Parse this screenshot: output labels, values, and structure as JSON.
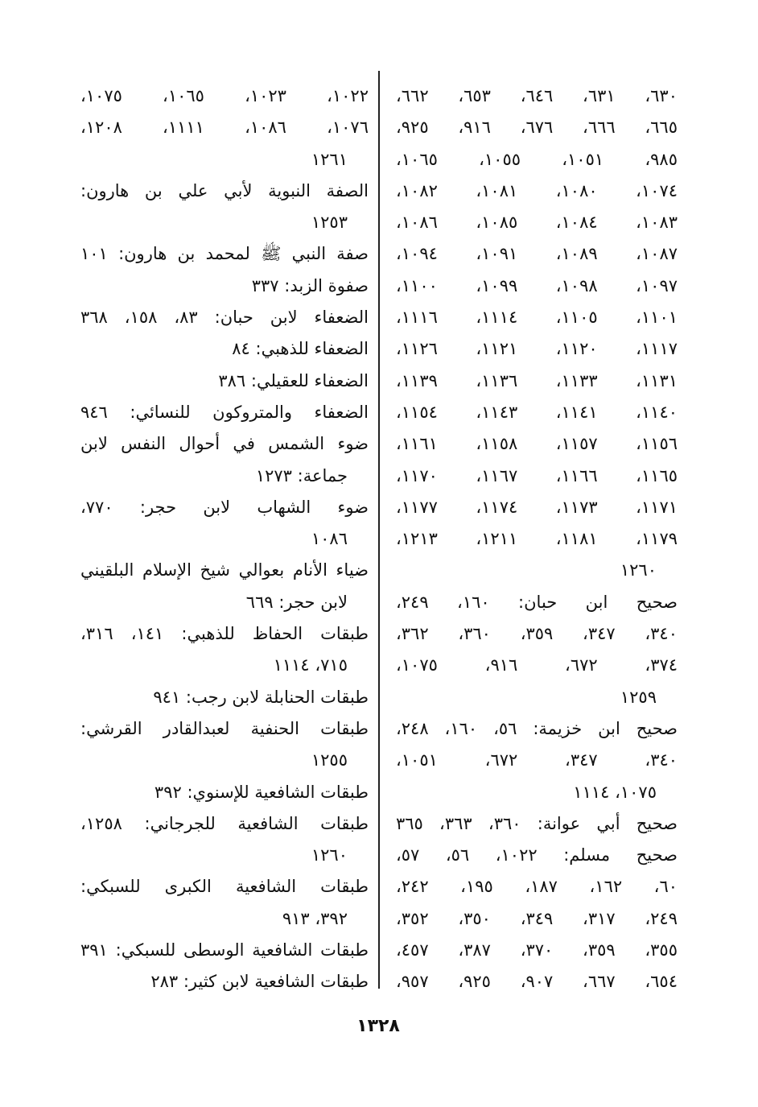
{
  "columns": [
    {
      "lines": [
        "٦٣٠، ٦٣١، ٦٤٦، ٦٥٣، ٦٦٢،",
        "٦٦٥، ٦٦٦، ٦٧٦، ٩١٦، ٩٢٥،",
        "٩٨٥، ١٠٥١، ١٠٥٥، ١٠٦٥،",
        "١٠٧٤، ١٠٨٠، ١٠٨١، ١٠٨٢،",
        "١٠٨٣، ١٠٨٤، ١٠٨٥، ١٠٨٦،",
        "١٠٨٧، ١٠٨٩، ١٠٩١، ١٠٩٤،",
        "١٠٩٧، ١٠٩٨، ١٠٩٩، ١١٠٠،",
        "١١٠١، ١١٠٥، ١١١٤، ١١١٦،",
        "١١١٧، ١١٢٠، ١١٢١، ١١٢٦،",
        "١١٣١، ١١٣٣، ١١٣٦، ١١٣٩،",
        "١١٤٠، ١١٤١، ١١٤٣، ١١٥٤،",
        "١١٥٦، ١١٥٧، ١١٥٨، ١١٦١،",
        "١١٦٥، ١١٦٦، ١١٦٧، ١١٧٠،",
        "١١٧١، ١١٧٣، ١١٧٤، ١١٧٧،",
        "١١٧٩، ١١٨١، ١٢١١، ١٢١٣،",
        "١٢٦٠",
        "صحيح ابن حبان: ١٦٠، ٢٤٩،",
        "٣٤٠، ٣٤٧، ٣٥٩، ٣٦٠، ٣٦٢،",
        "٣٧٤، ٦٧٢، ٩١٦، ١٠٧٥،",
        "١٢٥٩",
        "صحيح ابن خزيمة: ٥٦، ١٦٠، ٢٤٨،",
        "٣٤٠، ٣٤٧، ٦٧٢، ١٠٥١،",
        "١٠٧٥، ١١١٤",
        "صحيح أبي عوانة: ٣٦٠، ٣٦٣، ٣٦٥",
        "صحيح مسلم: ١٠٢٢، ٥٦، ٥٧،",
        "٦٠، ١٦٢، ١٨٧، ١٩٥، ٢٤٢،",
        "٢٤٩، ٣١٧، ٣٤٩، ٣٥٠، ٣٥٢،",
        "٣٥٥، ٣٥٩، ٣٧٠، ٣٨٧، ٤٥٧،",
        "٦٥٤، ٦٦٧، ٩٠٧، ٩٢٥، ٩٥٧،"
      ]
    },
    {
      "lines": [
        "١٠٢٢، ١٠٢٣، ١٠٦٥، ١٠٧٥،",
        "١٠٧٦، ١٠٨٦، ١١١١، ١٢٠٨،",
        "١٢٦١",
        "الصفة النبوية لأبي علي بن هارون:",
        "١٢٥٣",
        "صفة النبي ﷺ لمحمد بن هارون: ١٠١",
        "صفوة الزبد: ٣٣٧",
        "الضعفاء لابن حبان: ٨٣، ١٥٨، ٣٦٨",
        "الضعفاء للذهبي: ٨٤",
        "الضعفاء للعقيلي: ٣٨٦",
        "الضعفاء والمتروكون للنسائي: ٩٤٦",
        "ضوء الشمس في أحوال النفس لابن",
        "جماعة: ١٢٧٣",
        "ضوء الشهاب لابن حجر: ٧٧٠،",
        "١٠٨٦",
        "ضياء الأنام بعوالي شيخ الإسلام البلقيني",
        "لابن حجر: ٦٦٩",
        "طبقات الحفاظ للذهبي: ١٤١، ٣١٦،",
        "٧١٥، ١١١٤",
        "طبقات الحنابلة لابن رجب: ٩٤١",
        "طبقات الحنفية لعبدالقادر القرشي:",
        "١٢٥٥",
        "طبقات الشافعية للإسنوي: ٣٩٢",
        "طبقات الشافعية للجرجاني: ١٢٥٨،",
        "١٢٦٠",
        "طبقات الشافعية الكبرى للسبكي:",
        "٣٩٢، ٩١٣",
        "طبقات الشافعية الوسطى للسبكي: ٣٩١",
        "طبقات الشافعية لابن كثير: ٢٨٣"
      ]
    }
  ],
  "page_number": "١٣٢٨"
}
